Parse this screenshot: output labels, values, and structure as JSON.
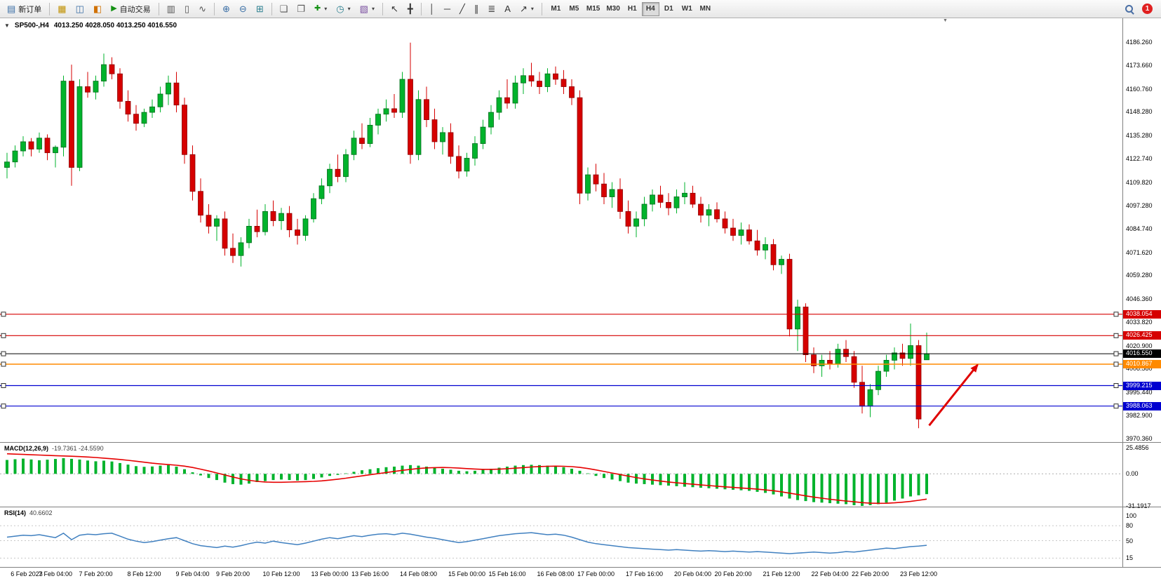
{
  "toolbar": {
    "new_order": {
      "label": "新订单"
    },
    "auto_trading": {
      "label": "自动交易"
    },
    "timeframes": [
      {
        "label": "M1",
        "active": false
      },
      {
        "label": "M5",
        "active": false
      },
      {
        "label": "M15",
        "active": false
      },
      {
        "label": "M30",
        "active": false
      },
      {
        "label": "H1",
        "active": false
      },
      {
        "label": "H4",
        "active": true
      },
      {
        "label": "D1",
        "active": false
      },
      {
        "label": "W1",
        "active": false
      },
      {
        "label": "MN",
        "active": false
      }
    ],
    "notification_badge": "1"
  },
  "icons": {
    "caret": "▾",
    "one_click_arrow": "▼",
    "chart_shift_marker": "▼",
    "new_order": "▤",
    "charts": "▦",
    "market_watch": "◫",
    "navigator": "◧",
    "play": "▶",
    "bar_chart": "▥",
    "candlestick": "▯",
    "line_chart": "∿",
    "zoom_in": "⊕",
    "zoom_out": "⊖",
    "grid": "⊞",
    "tile_windows": "❏",
    "cascade_windows": "❐",
    "new_chart": "✚",
    "period": "◷",
    "template": "▧",
    "cursor": "↖",
    "crosshair": "╋",
    "vline": "│",
    "hline": "─",
    "trendline": "╱",
    "channel": "∥",
    "fibonacci": "≣",
    "text": "A",
    "arrows": "↗"
  },
  "chart": {
    "symbol_header": "SP500-,H4",
    "ohlc": "4013.250 4028.050 4013.250 4016.550"
  },
  "indicators": {
    "macd": {
      "label": "MACD(12,26,9)",
      "values": "-19.7361 -24.5590",
      "scale": [
        "25.4856",
        "0.00",
        "-31.1917"
      ],
      "scale_values": [
        25.4856,
        0,
        -31.1917
      ]
    },
    "rsi": {
      "label": "RSI(14)",
      "value": "40.6602",
      "scale": [
        "100",
        "80",
        "50",
        "15"
      ],
      "scale_values": [
        100,
        80,
        50,
        15
      ],
      "levels": [
        80,
        50,
        15
      ]
    }
  },
  "chart_data": {
    "type": "candlestick",
    "symbol": "SP500-",
    "timeframe": "H4",
    "ohlc_current": {
      "open": 4013.25,
      "high": 4028.05,
      "low": 4013.25,
      "close": 4016.55
    },
    "ylim": [
      3968.45,
      4199.25
    ],
    "price_ticks": [
      "4186.260",
      "4173.660",
      "4160.760",
      "4148.280",
      "4135.280",
      "4122.740",
      "4109.820",
      "4097.280",
      "4084.740",
      "4071.620",
      "4059.280",
      "4046.360",
      "4033.820",
      "4020.900",
      "4008.580",
      "3995.440",
      "3982.900",
      "3970.360"
    ],
    "time_labels": [
      "6 Feb 2023",
      "7 Feb 04:00",
      "7 Feb 20:00",
      "8 Feb 12:00",
      "9 Feb 04:00",
      "9 Feb 20:00",
      "10 Feb 12:00",
      "13 Feb 00:00",
      "13 Feb 16:00",
      "14 Feb 08:00",
      "15 Feb 00:00",
      "15 Feb 16:00",
      "16 Feb 08:00",
      "17 Feb 00:00",
      "17 Feb 16:00",
      "20 Feb 04:00",
      "20 Feb 20:00",
      "21 Feb 12:00",
      "22 Feb 04:00",
      "22 Feb 20:00",
      "23 Feb 12:00"
    ],
    "time_label_indices": [
      0,
      6,
      11,
      17,
      23,
      28,
      34,
      40,
      45,
      51,
      57,
      62,
      68,
      73,
      79,
      85,
      90,
      96,
      102,
      107,
      113
    ],
    "hlines": [
      {
        "price": 4038.054,
        "color": "#d60000",
        "label": "4038.054",
        "width": 1.2
      },
      {
        "price": 4026.425,
        "color": "#d60000",
        "label": "4026.425",
        "width": 1.2
      },
      {
        "price": 4016.55,
        "color": "#000000",
        "label": "4016.550",
        "width": 1
      },
      {
        "price": 4010.867,
        "color": "#ff8a00",
        "label": "4010.867",
        "width": 1.6
      },
      {
        "price": 3999.215,
        "color": "#0000d0",
        "label": "3999.215",
        "width": 1.2
      },
      {
        "price": 3988.063,
        "color": "#0000d0",
        "label": "3988.063",
        "width": 1.2
      }
    ],
    "candles": [
      [
        4118,
        4126,
        4112,
        4121
      ],
      [
        4121,
        4130,
        4118,
        4127
      ],
      [
        4127,
        4135,
        4124,
        4132
      ],
      [
        4132,
        4134,
        4124,
        4128
      ],
      [
        4128,
        4137,
        4126,
        4134
      ],
      [
        4134,
        4136,
        4122,
        4126
      ],
      [
        4126,
        4130,
        4118,
        4129
      ],
      [
        4129,
        4168,
        4124,
        4165
      ],
      [
        4165,
        4174,
        4108,
        4118
      ],
      [
        4118,
        4166,
        4116,
        4162
      ],
      [
        4162,
        4170,
        4156,
        4159
      ],
      [
        4159,
        4168,
        4155,
        4165
      ],
      [
        4165,
        4180,
        4162,
        4174
      ],
      [
        4174,
        4178,
        4166,
        4169
      ],
      [
        4169,
        4172,
        4150,
        4154
      ],
      [
        4154,
        4160,
        4143,
        4147
      ],
      [
        4147,
        4152,
        4138,
        4142
      ],
      [
        4142,
        4150,
        4140,
        4148
      ],
      [
        4148,
        4155,
        4145,
        4151
      ],
      [
        4151,
        4162,
        4148,
        4158
      ],
      [
        4158,
        4168,
        4152,
        4164
      ],
      [
        4164,
        4170,
        4148,
        4152
      ],
      [
        4152,
        4156,
        4120,
        4125
      ],
      [
        4125,
        4130,
        4100,
        4105
      ],
      [
        4105,
        4112,
        4088,
        4092
      ],
      [
        4092,
        4098,
        4082,
        4086
      ],
      [
        4086,
        4092,
        4078,
        4090
      ],
      [
        4090,
        4094,
        4070,
        4074
      ],
      [
        4074,
        4082,
        4066,
        4070
      ],
      [
        4070,
        4080,
        4064,
        4077
      ],
      [
        4077,
        4090,
        4074,
        4086
      ],
      [
        4086,
        4095,
        4080,
        4083
      ],
      [
        4083,
        4098,
        4081,
        4094
      ],
      [
        4094,
        4100,
        4086,
        4089
      ],
      [
        4089,
        4096,
        4084,
        4093
      ],
      [
        4093,
        4097,
        4080,
        4084
      ],
      [
        4084,
        4090,
        4076,
        4081
      ],
      [
        4081,
        4092,
        4078,
        4090
      ],
      [
        4090,
        4104,
        4088,
        4101
      ],
      [
        4101,
        4112,
        4098,
        4108
      ],
      [
        4108,
        4120,
        4104,
        4117
      ],
      [
        4117,
        4125,
        4110,
        4113
      ],
      [
        4113,
        4128,
        4110,
        4125
      ],
      [
        4125,
        4138,
        4122,
        4134
      ],
      [
        4134,
        4142,
        4128,
        4131
      ],
      [
        4131,
        4145,
        4129,
        4141
      ],
      [
        4141,
        4150,
        4136,
        4147
      ],
      [
        4147,
        4155,
        4143,
        4150
      ],
      [
        4150,
        4158,
        4145,
        4148
      ],
      [
        4148,
        4170,
        4145,
        4166
      ],
      [
        4166,
        4186,
        4120,
        4125
      ],
      [
        4125,
        4160,
        4122,
        4155
      ],
      [
        4155,
        4162,
        4140,
        4144
      ],
      [
        4144,
        4150,
        4128,
        4132
      ],
      [
        4132,
        4140,
        4125,
        4137
      ],
      [
        4137,
        4142,
        4120,
        4124
      ],
      [
        4124,
        4130,
        4112,
        4116
      ],
      [
        4116,
        4126,
        4113,
        4123
      ],
      [
        4123,
        4135,
        4119,
        4131
      ],
      [
        4131,
        4144,
        4128,
        4140
      ],
      [
        4140,
        4152,
        4136,
        4148
      ],
      [
        4148,
        4160,
        4144,
        4156
      ],
      [
        4156,
        4166,
        4150,
        4153
      ],
      [
        4153,
        4168,
        4150,
        4164
      ],
      [
        4164,
        4172,
        4158,
        4168
      ],
      [
        4168,
        4175,
        4162,
        4165
      ],
      [
        4165,
        4170,
        4158,
        4162
      ],
      [
        4162,
        4172,
        4159,
        4169
      ],
      [
        4169,
        4173,
        4163,
        4166
      ],
      [
        4166,
        4171,
        4158,
        4162
      ],
      [
        4162,
        4166,
        4152,
        4156
      ],
      [
        4156,
        4160,
        4098,
        4104
      ],
      [
        4104,
        4118,
        4100,
        4114
      ],
      [
        4114,
        4120,
        4105,
        4109
      ],
      [
        4109,
        4115,
        4098,
        4102
      ],
      [
        4102,
        4110,
        4096,
        4106
      ],
      [
        4106,
        4112,
        4090,
        4094
      ],
      [
        4094,
        4100,
        4082,
        4086
      ],
      [
        4086,
        4094,
        4080,
        4090
      ],
      [
        4090,
        4102,
        4086,
        4098
      ],
      [
        4098,
        4106,
        4094,
        4103
      ],
      [
        4103,
        4108,
        4096,
        4099
      ],
      [
        4099,
        4104,
        4092,
        4096
      ],
      [
        4096,
        4106,
        4093,
        4102
      ],
      [
        4102,
        4110,
        4098,
        4104
      ],
      [
        4104,
        4108,
        4096,
        4098
      ],
      [
        4098,
        4102,
        4088,
        4092
      ],
      [
        4092,
        4098,
        4086,
        4095
      ],
      [
        4095,
        4099,
        4088,
        4090
      ],
      [
        4090,
        4094,
        4082,
        4085
      ],
      [
        4085,
        4090,
        4078,
        4081
      ],
      [
        4081,
        4088,
        4076,
        4084
      ],
      [
        4084,
        4087,
        4076,
        4078
      ],
      [
        4078,
        4084,
        4070,
        4073
      ],
      [
        4073,
        4080,
        4068,
        4076
      ],
      [
        4076,
        4079,
        4062,
        4065
      ],
      [
        4065,
        4070,
        4060,
        4068
      ],
      [
        4068,
        4071,
        4026,
        4030
      ],
      [
        4030,
        4046,
        4018,
        4042
      ],
      [
        4042,
        4044,
        4012,
        4016
      ],
      [
        4016,
        4020,
        4006,
        4010
      ],
      [
        4010,
        4016,
        4004,
        4013
      ],
      [
        4013,
        4018,
        4008,
        4011
      ],
      [
        4011,
        4022,
        4009,
        4019
      ],
      [
        4019,
        4024,
        4012,
        4015
      ],
      [
        4015,
        4018,
        3998,
        4001
      ],
      [
        4001,
        4010,
        3984,
        3988
      ],
      [
        3988,
        4000,
        3982,
        3997
      ],
      [
        3997,
        4010,
        3994,
        4007
      ],
      [
        4007,
        4016,
        4004,
        4013
      ],
      [
        4013,
        4020,
        4008,
        4017
      ],
      [
        4017,
        4022,
        4010,
        4014
      ],
      [
        4014,
        4033,
        4010,
        4021
      ],
      [
        4021,
        4024,
        3976,
        3981
      ],
      [
        4013.25,
        4028.05,
        4013.25,
        4016.55
      ]
    ],
    "macd": {
      "range": {
        "max": 25.4856,
        "min": -31.1917
      },
      "histogram": [
        13.5,
        14.2,
        14.8,
        14.0,
        13.2,
        13.8,
        14.5,
        15.2,
        14.6,
        13.9,
        13.0,
        12.2,
        12.8,
        12.0,
        10.5,
        9.0,
        7.5,
        6.8,
        7.2,
        8.0,
        8.5,
        7.0,
        4.5,
        1.5,
        -1.5,
        -4.0,
        -6.0,
        -8.5,
        -10.0,
        -10.5,
        -9.5,
        -8.0,
        -7.0,
        -6.0,
        -5.5,
        -6.0,
        -6.5,
        -6.0,
        -5.0,
        -3.5,
        -2.0,
        -1.0,
        0.5,
        2.0,
        3.5,
        4.5,
        5.5,
        6.5,
        7.0,
        8.0,
        8.5,
        8.0,
        7.0,
        6.0,
        5.0,
        4.0,
        3.0,
        2.5,
        3.0,
        4.0,
        5.0,
        6.0,
        7.0,
        8.0,
        8.5,
        8.8,
        8.5,
        8.0,
        7.5,
        6.5,
        5.0,
        3.0,
        0.5,
        -2.0,
        -4.0,
        -5.5,
        -7.0,
        -8.5,
        -9.5,
        -10.0,
        -10.5,
        -11.0,
        -11.5,
        -12.0,
        -12.5,
        -13.0,
        -13.5,
        -14.0,
        -14.5,
        -15.0,
        -15.5,
        -16.0,
        -16.5,
        -17.5,
        -18.5,
        -20.0,
        -22.0,
        -24.0,
        -25.5,
        -26.5,
        -27.5,
        -28.0,
        -28.5,
        -29.0,
        -29.5,
        -30.5,
        -31.19,
        -30.5,
        -29.5,
        -28.0,
        -26.0,
        -24.0,
        -22.0,
        -20.8,
        -19.7361
      ],
      "signal": [
        19.5,
        19.2,
        18.9,
        18.6,
        18.3,
        18.0,
        17.7,
        17.4,
        17.1,
        16.8,
        16.4,
        15.9,
        15.3,
        14.7,
        14.0,
        13.2,
        12.3,
        11.3,
        10.4,
        9.6,
        9.0,
        8.4,
        7.5,
        6.2,
        4.6,
        2.8,
        0.9,
        -1.1,
        -3.1,
        -4.9,
        -6.3,
        -7.3,
        -7.9,
        -8.2,
        -8.2,
        -8.0,
        -7.8,
        -7.6,
        -7.3,
        -6.8,
        -6.1,
        -5.2,
        -4.2,
        -3.1,
        -2.0,
        -0.9,
        0.2,
        1.3,
        2.4,
        3.4,
        4.4,
        5.2,
        5.8,
        6.1,
        6.2,
        6.0,
        5.6,
        5.1,
        4.7,
        4.4,
        4.4,
        4.6,
        5.0,
        5.5,
        6.1,
        6.7,
        7.1,
        7.4,
        7.5,
        7.4,
        7.0,
        6.3,
        5.2,
        3.8,
        2.3,
        0.8,
        -0.7,
        -2.2,
        -3.6,
        -4.9,
        -6.0,
        -7.0,
        -7.9,
        -8.7,
        -9.4,
        -10.1,
        -10.8,
        -11.4,
        -12.0,
        -12.6,
        -13.2,
        -13.7,
        -14.3,
        -14.9,
        -15.6,
        -16.4,
        -17.5,
        -18.8,
        -20.1,
        -21.4,
        -22.6,
        -23.7,
        -24.7,
        -25.6,
        -26.4,
        -27.2,
        -28.0,
        -28.5,
        -28.7,
        -28.6,
        -28.2,
        -27.6,
        -26.8,
        -25.7,
        -24.559
      ]
    },
    "rsi": {
      "current": 40.6602,
      "values": [
        57,
        59,
        61,
        60,
        62,
        59,
        56,
        65,
        52,
        61,
        63,
        62,
        64,
        65,
        59,
        53,
        49,
        46,
        48,
        51,
        54,
        56,
        50,
        44,
        40,
        38,
        36,
        39,
        37,
        40,
        44,
        47,
        45,
        49,
        46,
        44,
        42,
        45,
        49,
        53,
        56,
        54,
        57,
        60,
        58,
        61,
        63,
        64,
        62,
        65,
        63,
        60,
        57,
        55,
        52,
        49,
        46,
        48,
        51,
        54,
        57,
        60,
        62,
        64,
        65,
        66,
        64,
        62,
        63,
        61,
        57,
        52,
        47,
        44,
        42,
        40,
        38,
        36,
        35,
        34,
        33,
        32,
        31,
        32,
        31,
        30,
        29,
        30,
        29,
        28,
        29,
        28,
        27,
        28,
        27,
        26,
        25,
        24,
        25,
        26,
        27,
        26,
        25,
        26,
        28,
        27,
        29,
        31,
        33,
        35,
        34,
        36,
        38,
        39,
        40.6602
      ]
    },
    "annotations": [
      {
        "type": "arrow",
        "color": "#e00000",
        "from": {
          "index": 114.3,
          "price": 3977.5
        },
        "to": {
          "index": 120.3,
          "price": 4010.5
        }
      }
    ],
    "colors": {
      "bull": "#00b32c",
      "bull_edge": "#006b1a",
      "bear": "#d60000",
      "bear_edge": "#8e0000",
      "macd_hist": "#00b32c",
      "macd_signal": "#e60000",
      "rsi_line": "#4080c0"
    }
  }
}
